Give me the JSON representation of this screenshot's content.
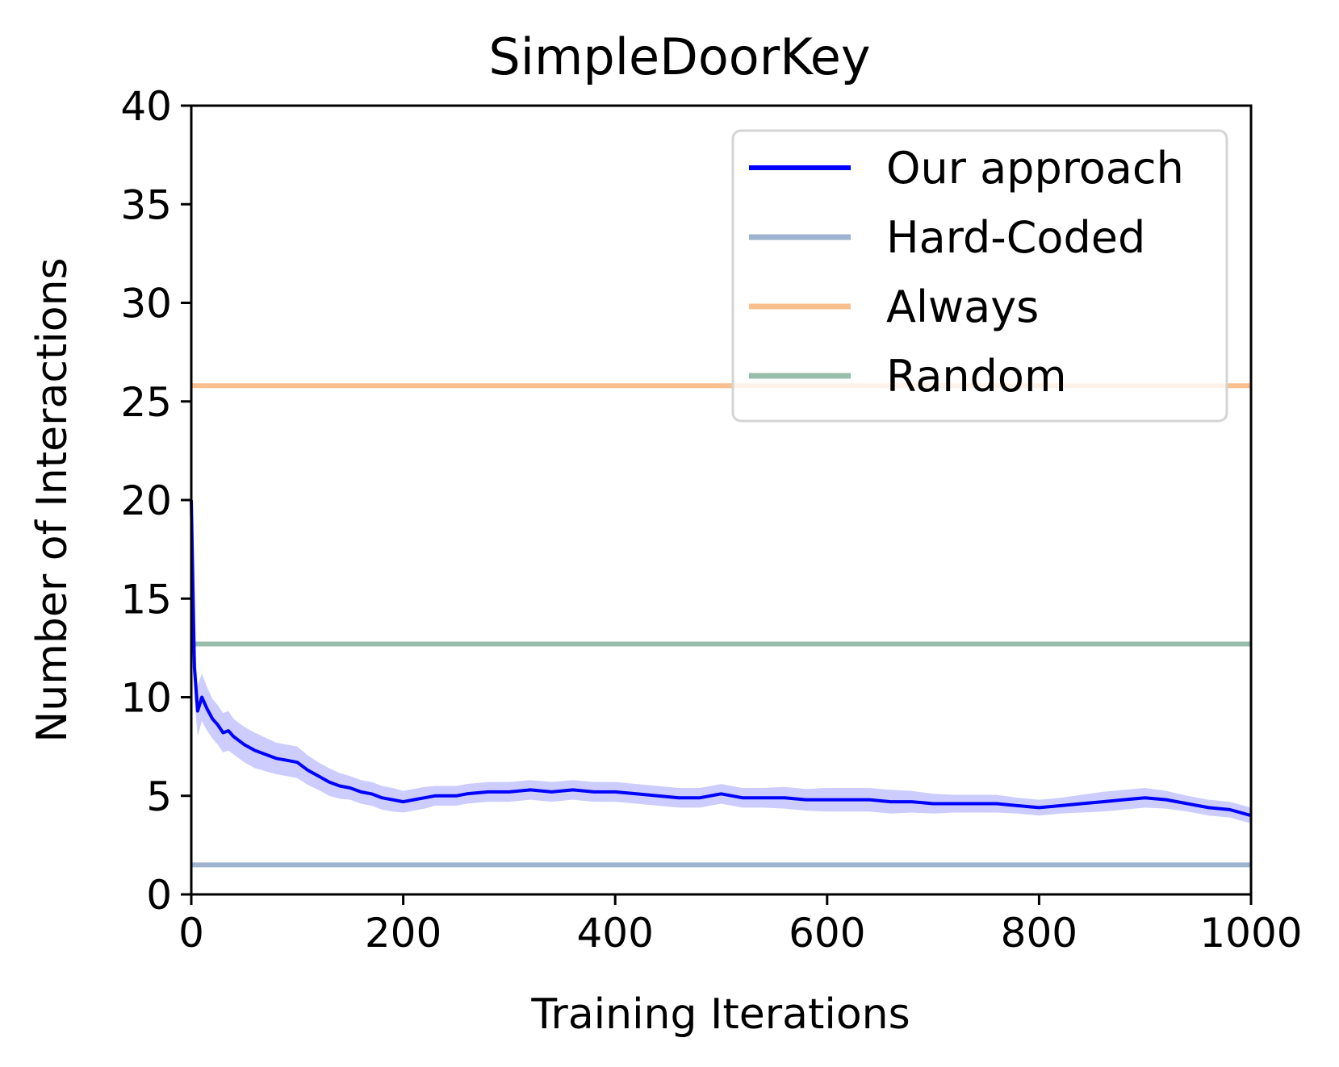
{
  "chart_data": {
    "type": "line",
    "title": "SimpleDoorKey",
    "xlabel": "Training Iterations",
    "ylabel": "Number of Interactions",
    "xlim": [
      0,
      1000
    ],
    "ylim": [
      0,
      40
    ],
    "xticks": [
      "0",
      "200",
      "400",
      "600",
      "800",
      "1000"
    ],
    "yticks": [
      "0",
      "5",
      "10",
      "15",
      "20",
      "25",
      "30",
      "35",
      "40"
    ],
    "grid": false,
    "legend_position": "top-right",
    "series": [
      {
        "name": "Our approach",
        "color": "#0000ff",
        "band_color": "#0000ff",
        "x": [
          0,
          3,
          6,
          10,
          15,
          20,
          25,
          30,
          35,
          40,
          50,
          60,
          70,
          80,
          90,
          100,
          110,
          120,
          130,
          140,
          150,
          160,
          170,
          180,
          190,
          200,
          210,
          220,
          230,
          240,
          250,
          260,
          280,
          300,
          320,
          340,
          360,
          380,
          400,
          420,
          440,
          460,
          480,
          500,
          520,
          540,
          560,
          580,
          600,
          620,
          640,
          660,
          680,
          700,
          720,
          740,
          760,
          780,
          800,
          820,
          840,
          860,
          880,
          900,
          920,
          940,
          960,
          980,
          1000
        ],
        "y": [
          20,
          11.5,
          9.3,
          10.0,
          9.4,
          8.9,
          8.6,
          8.2,
          8.3,
          8.0,
          7.6,
          7.3,
          7.1,
          6.9,
          6.8,
          6.7,
          6.3,
          6.0,
          5.7,
          5.5,
          5.4,
          5.2,
          5.1,
          4.9,
          4.8,
          4.7,
          4.8,
          4.9,
          5.0,
          5.0,
          5.0,
          5.1,
          5.2,
          5.2,
          5.3,
          5.2,
          5.3,
          5.2,
          5.2,
          5.1,
          5.0,
          4.9,
          4.9,
          5.1,
          4.9,
          4.9,
          4.9,
          4.8,
          4.8,
          4.8,
          4.8,
          4.7,
          4.7,
          4.6,
          4.6,
          4.6,
          4.6,
          4.5,
          4.4,
          4.5,
          4.6,
          4.7,
          4.8,
          4.9,
          4.8,
          4.6,
          4.4,
          4.3,
          4.0
        ],
        "band": [
          2.5,
          1.6,
          1.3,
          1.2,
          1.1,
          1.0,
          1.0,
          1.0,
          1.0,
          0.9,
          0.9,
          0.9,
          0.85,
          0.8,
          0.8,
          0.8,
          0.75,
          0.7,
          0.7,
          0.65,
          0.6,
          0.6,
          0.6,
          0.6,
          0.6,
          0.55,
          0.55,
          0.55,
          0.5,
          0.5,
          0.5,
          0.5,
          0.5,
          0.5,
          0.5,
          0.5,
          0.5,
          0.5,
          0.5,
          0.5,
          0.5,
          0.5,
          0.5,
          0.5,
          0.5,
          0.5,
          0.55,
          0.55,
          0.6,
          0.6,
          0.6,
          0.6,
          0.55,
          0.5,
          0.45,
          0.45,
          0.45,
          0.4,
          0.4,
          0.4,
          0.45,
          0.5,
          0.5,
          0.5,
          0.45,
          0.4,
          0.4,
          0.4,
          0.4
        ]
      },
      {
        "name": "Hard-Coded",
        "color": "#9eb3cf",
        "constant": 1.5
      },
      {
        "name": "Always",
        "color": "#f9bf8e",
        "constant": 25.8
      },
      {
        "name": "Random",
        "color": "#99bdab",
        "constant": 12.7
      }
    ]
  }
}
